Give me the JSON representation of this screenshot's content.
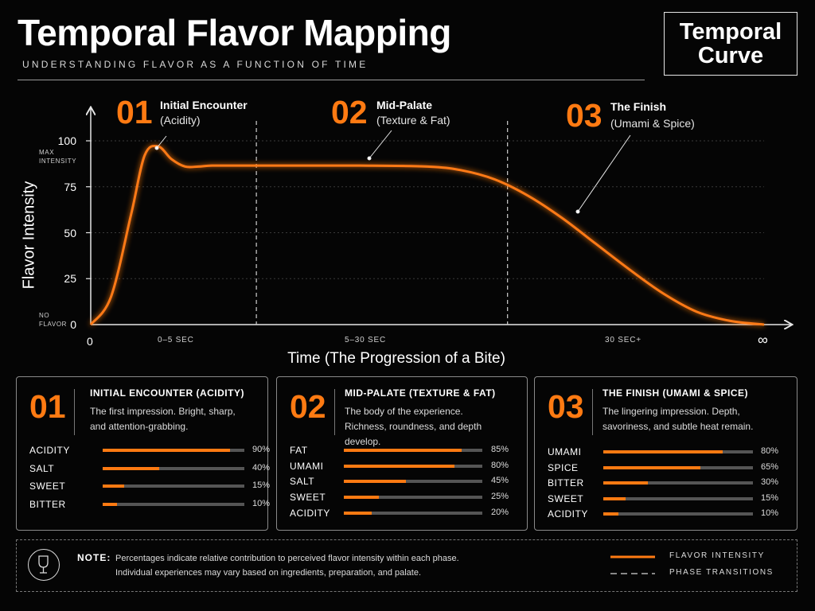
{
  "header": {
    "title": "Temporal Flavor Mapping",
    "subtitle": "UNDERSTANDING FLAVOR AS A FUNCTION OF TIME",
    "badge_line1": "Temporal",
    "badge_line2": "Curve"
  },
  "colors": {
    "accent": "#ff7a12",
    "background": "#050505",
    "track": "#555555"
  },
  "phases": [
    {
      "num": "01",
      "name": "Initial Encounter",
      "desc": "(Acidity)"
    },
    {
      "num": "02",
      "name": "Mid-Palate",
      "desc": "(Texture & Fat)"
    },
    {
      "num": "03",
      "name": "The Finish",
      "desc": "(Umami & Spice)"
    }
  ],
  "chart_data": {
    "type": "line",
    "ylabel": "Flavor Intensity",
    "xlabel": "Time (The Progression of a Bite)",
    "ylim": [
      0,
      100
    ],
    "y_ticks": [
      "0",
      "25",
      "50",
      "75",
      "100"
    ],
    "y_annotations": {
      "max": "MAX INTENSITY",
      "min": "NO FLAVOR"
    },
    "x_ticks": [
      "0",
      "0–5 SEC",
      "5–30 SEC",
      "30 SEC+",
      "∞"
    ],
    "grid": true,
    "series": [
      {
        "name": "FLAVOR INTENSITY",
        "x": [
          0,
          0.03,
          0.06,
          0.08,
          0.1,
          0.12,
          0.14,
          0.16,
          0.18,
          0.22,
          0.3,
          0.4,
          0.5,
          0.55,
          0.6,
          0.65,
          0.7,
          0.75,
          0.8,
          0.85,
          0.9,
          0.95,
          1.0
        ],
        "y": [
          0,
          15,
          60,
          92,
          97,
          90,
          86,
          86,
          86.5,
          86.5,
          86.5,
          86.5,
          86,
          84,
          79,
          70,
          58,
          44,
          30,
          17,
          7,
          2,
          0
        ]
      }
    ],
    "phase_transitions": [
      0.246,
      0.619
    ]
  },
  "cards": [
    {
      "num": "01",
      "title": "INITIAL ENCOUNTER (ACIDITY)",
      "desc": "The first impression. Bright, sharp, and attention-grabbing.",
      "bars": [
        {
          "label": "ACIDITY",
          "value": 90,
          "pct": "90%"
        },
        {
          "label": "SALT",
          "value": 40,
          "pct": "40%"
        },
        {
          "label": "SWEET",
          "value": 15,
          "pct": "15%"
        },
        {
          "label": "BITTER",
          "value": 10,
          "pct": "10%"
        }
      ]
    },
    {
      "num": "02",
      "title": "MID-PALATE (TEXTURE & FAT)",
      "desc": "The body of the experience. Richness, roundness, and depth develop.",
      "bars": [
        {
          "label": "FAT",
          "value": 85,
          "pct": "85%"
        },
        {
          "label": "UMAMI",
          "value": 80,
          "pct": "80%"
        },
        {
          "label": "SALT",
          "value": 45,
          "pct": "45%"
        },
        {
          "label": "SWEET",
          "value": 25,
          "pct": "25%"
        },
        {
          "label": "ACIDITY",
          "value": 20,
          "pct": "20%"
        }
      ]
    },
    {
      "num": "03",
      "title": "THE FINISH (UMAMI & SPICE)",
      "desc": "The lingering impression. Depth, savoriness, and subtle heat remain.",
      "bars": [
        {
          "label": "UMAMI",
          "value": 80,
          "pct": "80%"
        },
        {
          "label": "SPICE",
          "value": 65,
          "pct": "65%"
        },
        {
          "label": "BITTER",
          "value": 30,
          "pct": "30%"
        },
        {
          "label": "SWEET",
          "value": 15,
          "pct": "15%"
        },
        {
          "label": "ACIDITY",
          "value": 10,
          "pct": "10%"
        }
      ]
    }
  ],
  "note": {
    "label": "NOTE:",
    "line1": "Percentages indicate relative contribution to perceived flavor intensity within each phase.",
    "line2": "Individual experiences may vary based on ingredients, preparation, and palate.",
    "icon": "wine-glass-icon"
  },
  "legend": {
    "line": "FLAVOR INTENSITY",
    "dashed": "PHASE TRANSITIONS"
  }
}
